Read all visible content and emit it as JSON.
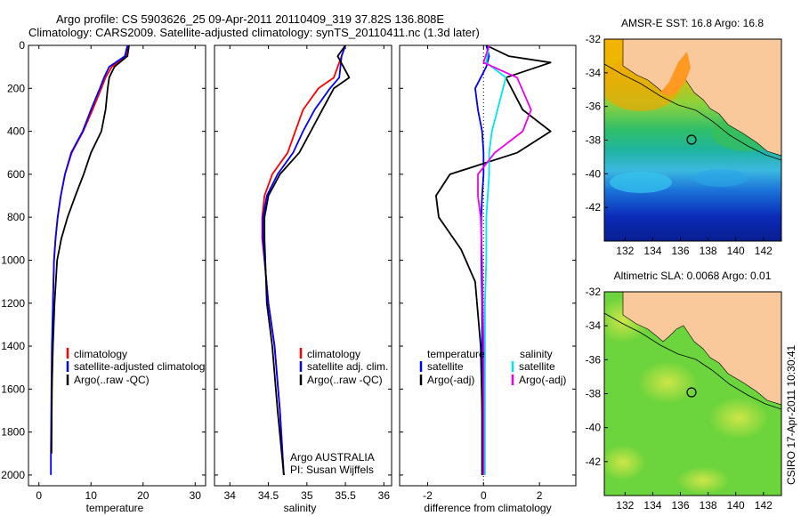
{
  "header": {
    "title_line1": "Argo profile: CS 5903626_25 09-Apr-2011 20110409_319 37.82S 136.808E",
    "title_line2": "Climatology: CARS2009. Satellite-adjusted climatology: synTS_20110411.nc (1.3d later)"
  },
  "colors": {
    "climatology": "#ff0000",
    "satellite": "#0000ff",
    "argo": "#000000",
    "sat_salinity": "#00e5ee",
    "argo_salinity": "#ee00ee",
    "land": "#f9c89b"
  },
  "panels": {
    "temperature": {
      "xlabel": "temperature",
      "xticks": [
        "0",
        "10",
        "20",
        "30"
      ],
      "legend": [
        "climatology",
        "satellite-adjusted climatolog",
        "Argo(..raw -QC)"
      ]
    },
    "salinity": {
      "xlabel": "salinity",
      "xticks": [
        "34",
        "34.5",
        "35",
        "35.5",
        "36"
      ],
      "legend": [
        "climatology",
        "satellite adj. clim.",
        "Argo(..raw -QC)"
      ],
      "credit_line1": "Argo AUSTRALIA",
      "credit_line2": "PI: Susan Wijffels"
    },
    "difference": {
      "xlabel": "difference from climatology",
      "xticks": [
        "-2",
        "0",
        "2"
      ],
      "legend_temp_head": "temperature",
      "legend_temp": [
        "satellite",
        "Argo(-adj)"
      ],
      "legend_sal_head": "salinity",
      "legend_sal": [
        "satellite",
        "Argo(-adj)"
      ]
    },
    "depth_ticks": [
      "0",
      "200",
      "400",
      "600",
      "800",
      "1000",
      "1200",
      "1400",
      "1600",
      "1800",
      "2000"
    ]
  },
  "maps": {
    "sst_title": "AMSR-E SST: 16.8 Argo: 16.8",
    "sla_title": "Altimetric SLA: 0.0068 Argo: 0.01",
    "lat_ticks": [
      "-32",
      "-34",
      "-36",
      "-38",
      "-40",
      "-42"
    ],
    "lon_ticks": [
      "132",
      "134",
      "136",
      "138",
      "140",
      "142"
    ],
    "float_position": {
      "lon": 136.808,
      "lat": -37.82
    },
    "stamp": "CSIRO 17-Apr-2011 10:30:41"
  },
  "chart_data": [
    {
      "type": "line",
      "title": "",
      "xlabel": "temperature",
      "ylabel": "",
      "xlim": [
        -2,
        32
      ],
      "ylim": [
        2050,
        0
      ],
      "series": [
        {
          "name": "climatology",
          "x": [
            17.2,
            16.8,
            14.0,
            12.8,
            12.0,
            10.3,
            8.5,
            6.3,
            5.0,
            4.2,
            3.6,
            3.2,
            2.9,
            2.7,
            2.6,
            2.5,
            2.4
          ],
          "y": [
            0,
            50,
            100,
            150,
            200,
            300,
            400,
            500,
            600,
            700,
            800,
            900,
            1000,
            1200,
            1400,
            1600,
            1900
          ]
        },
        {
          "name": "satellite-adjusted climatolog",
          "x": [
            17.0,
            16.5,
            13.5,
            12.5,
            11.7,
            10.0,
            8.4,
            6.2,
            5.0,
            4.2,
            3.6,
            3.2,
            2.9,
            2.7,
            2.5,
            2.4,
            2.3,
            2.3
          ],
          "y": [
            0,
            50,
            100,
            150,
            200,
            300,
            400,
            500,
            600,
            700,
            800,
            900,
            1000,
            1200,
            1400,
            1600,
            1900,
            2000
          ]
        },
        {
          "name": "Argo(..raw -QC)",
          "x": [
            17.3,
            17.0,
            14.5,
            13.5,
            13.2,
            12.8,
            12.0,
            10.0,
            8.6,
            7.0,
            5.5,
            4.3,
            3.5,
            3.0,
            2.7,
            2.5,
            2.4
          ],
          "y": [
            0,
            50,
            100,
            150,
            200,
            300,
            400,
            500,
            600,
            700,
            800,
            900,
            1000,
            1200,
            1400,
            1600,
            1900
          ]
        }
      ]
    },
    {
      "type": "line",
      "title": "",
      "xlabel": "salinity",
      "ylabel": "",
      "xlim": [
        33.8,
        36.1
      ],
      "ylim": [
        2050,
        0
      ],
      "series": [
        {
          "name": "climatology",
          "x": [
            35.5,
            35.45,
            35.35,
            35.15,
            34.95,
            34.85,
            34.75,
            34.55,
            34.45,
            34.42,
            34.42,
            34.45,
            34.5,
            34.58,
            34.65,
            34.7
          ],
          "y": [
            0,
            50,
            150,
            200,
            300,
            400,
            500,
            600,
            700,
            800,
            900,
            1000,
            1200,
            1400,
            1700,
            2000
          ]
        },
        {
          "name": "satellite adj. clim.",
          "x": [
            35.5,
            35.45,
            35.42,
            35.3,
            35.1,
            34.95,
            34.82,
            34.62,
            34.48,
            34.43,
            34.43,
            34.45,
            34.5,
            34.58,
            34.65,
            34.7
          ],
          "y": [
            0,
            50,
            150,
            200,
            300,
            400,
            500,
            600,
            700,
            800,
            900,
            1000,
            1200,
            1400,
            1700,
            2000
          ]
        },
        {
          "name": "Argo(..raw -QC)",
          "x": [
            35.5,
            35.4,
            35.55,
            35.35,
            35.2,
            35.05,
            34.9,
            34.65,
            34.5,
            34.45,
            34.45,
            34.46,
            34.48,
            34.55,
            34.62,
            34.7
          ],
          "y": [
            0,
            50,
            150,
            200,
            300,
            400,
            500,
            600,
            700,
            800,
            900,
            1000,
            1200,
            1400,
            1700,
            2000
          ]
        }
      ]
    },
    {
      "type": "line",
      "title": "",
      "xlabel": "difference from climatology",
      "ylabel": "",
      "xlim": [
        -3,
        3.3
      ],
      "ylim": [
        2050,
        0
      ],
      "series": [
        {
          "name": "temperature satellite",
          "x": [
            0.1,
            0.2,
            0.1,
            -0.3,
            -0.2,
            -0.05,
            0.0,
            0.0,
            -0.05,
            -0.08,
            -0.08,
            -0.05,
            -0.05,
            -0.05,
            -0.05
          ],
          "y": [
            0,
            50,
            100,
            200,
            300,
            400,
            500,
            600,
            700,
            800,
            1000,
            1200,
            1400,
            1700,
            2000
          ]
        },
        {
          "name": "temperature Argo(-adj)",
          "x": [
            0.1,
            0.9,
            2.4,
            0.8,
            1.4,
            2.4,
            1.2,
            -1.2,
            -1.7,
            -1.6,
            -0.8,
            -0.3,
            -0.1,
            -0.05,
            -0.05
          ],
          "y": [
            0,
            50,
            80,
            150,
            300,
            400,
            500,
            600,
            700,
            800,
            950,
            1100,
            1400,
            1700,
            2000
          ]
        },
        {
          "name": "salinity satellite",
          "x": [
            0.2,
            0.1,
            0.8,
            0.5,
            0.3,
            0.2,
            0.2,
            0.1,
            0.1,
            0.05,
            0.05,
            0.05
          ],
          "y": [
            0,
            80,
            150,
            300,
            400,
            500,
            600,
            800,
            1000,
            1200,
            1600,
            2000
          ]
        },
        {
          "name": "salinity Argo(-adj)",
          "x": [
            0.2,
            0.0,
            1.2,
            1.7,
            1.4,
            0.4,
            -0.2,
            -0.2,
            -0.1,
            -0.05,
            0.0,
            0.0
          ],
          "y": [
            0,
            80,
            150,
            300,
            400,
            500,
            600,
            700,
            800,
            1000,
            1400,
            2000
          ]
        }
      ]
    },
    {
      "type": "heatmap",
      "title": "AMSR-E SST: 16.8 Argo: 16.8",
      "xlabel": "",
      "ylabel": "",
      "xlim": [
        130.5,
        143.3
      ],
      "ylim": [
        -44,
        -32
      ],
      "markers": [
        {
          "lon": 136.808,
          "lat": -37.82
        }
      ]
    },
    {
      "type": "heatmap",
      "title": "Altimetric SLA: 0.0068 Argo: 0.01",
      "xlabel": "",
      "ylabel": "",
      "xlim": [
        130.5,
        143.3
      ],
      "ylim": [
        -44,
        -32
      ],
      "markers": [
        {
          "lon": 136.808,
          "lat": -37.82
        }
      ]
    }
  ]
}
